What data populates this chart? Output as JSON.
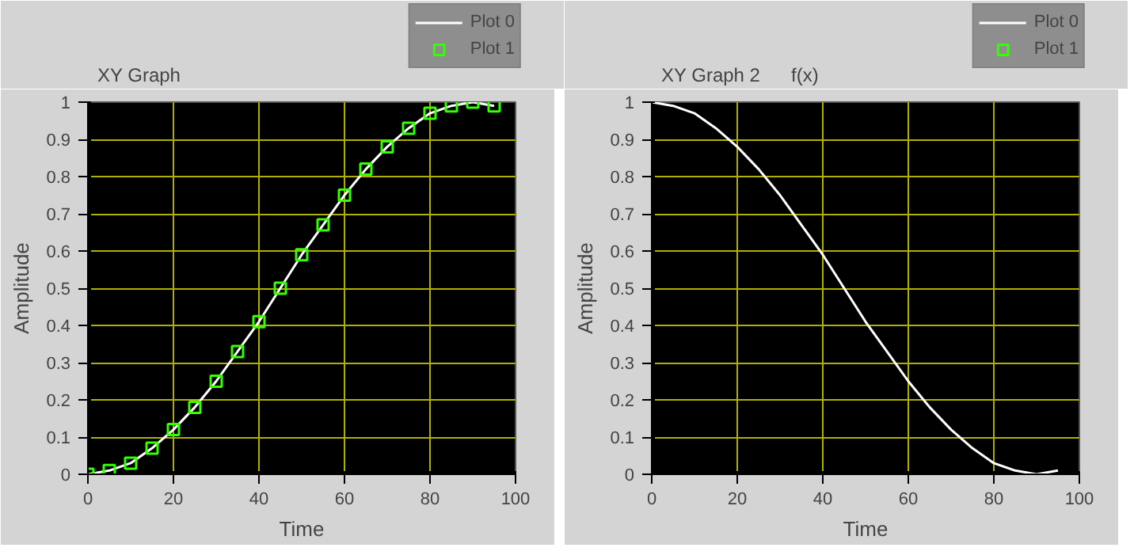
{
  "chart_data": [
    {
      "type": "line",
      "title": "XY Graph",
      "xlabel": "Time",
      "ylabel": "Amplitude",
      "x": [
        0,
        5,
        10,
        15,
        20,
        25,
        30,
        35,
        40,
        45,
        50,
        55,
        60,
        65,
        70,
        75,
        80,
        85,
        90,
        95
      ],
      "series": [
        {
          "name": "Plot 0",
          "color": "#ffffff",
          "type": "line",
          "values": [
            0,
            0.01,
            0.03,
            0.07,
            0.12,
            0.18,
            0.25,
            0.33,
            0.41,
            0.5,
            0.59,
            0.67,
            0.75,
            0.82,
            0.88,
            0.93,
            0.97,
            0.99,
            1.0,
            0.99
          ]
        },
        {
          "name": "Plot 1",
          "color": "#33ff00",
          "type": "scatter",
          "marker": "square",
          "values": [
            0,
            0.01,
            0.03,
            0.07,
            0.12,
            0.18,
            0.25,
            0.33,
            0.41,
            0.5,
            0.59,
            0.67,
            0.75,
            0.82,
            0.88,
            0.93,
            0.97,
            0.99,
            1.0,
            0.99
          ]
        }
      ],
      "xlim": [
        0,
        100
      ],
      "ylim": [
        0,
        1
      ],
      "xticks": [
        0,
        20,
        40,
        60,
        80,
        100
      ],
      "yticks": [
        0,
        0.1,
        0.2,
        0.3,
        0.4,
        0.5,
        0.6,
        0.7,
        0.8,
        0.9,
        1
      ],
      "grid": true,
      "legend": "top right"
    },
    {
      "type": "line",
      "title": "XY Graph 2",
      "xlabel": "Time",
      "ylabel": "Amplitude",
      "annotations": [
        "f(x)"
      ],
      "x": [
        0,
        5,
        10,
        15,
        20,
        25,
        30,
        35,
        40,
        45,
        50,
        55,
        60,
        65,
        70,
        75,
        80,
        85,
        90,
        95
      ],
      "series": [
        {
          "name": "Plot 0",
          "color": "#ffffff",
          "type": "line",
          "values": [
            1.0,
            0.99,
            0.97,
            0.93,
            0.88,
            0.82,
            0.75,
            0.67,
            0.59,
            0.5,
            0.41,
            0.33,
            0.25,
            0.18,
            0.12,
            0.07,
            0.03,
            0.01,
            0.0,
            0.01
          ]
        },
        {
          "name": "Plot 1",
          "color": "#33ff00",
          "type": "scatter",
          "marker": "square",
          "values": [
            null,
            null,
            null,
            null,
            null,
            null,
            null,
            null,
            null,
            null,
            null,
            null,
            null,
            null,
            null,
            null,
            null,
            null,
            null,
            null
          ]
        }
      ],
      "xlim": [
        0,
        100
      ],
      "ylim": [
        0,
        1
      ],
      "xticks": [
        0,
        20,
        40,
        60,
        80,
        100
      ],
      "yticks": [
        0,
        0.1,
        0.2,
        0.3,
        0.4,
        0.5,
        0.6,
        0.7,
        0.8,
        0.9,
        1
      ],
      "grid": true,
      "legend": "top right"
    }
  ]
}
